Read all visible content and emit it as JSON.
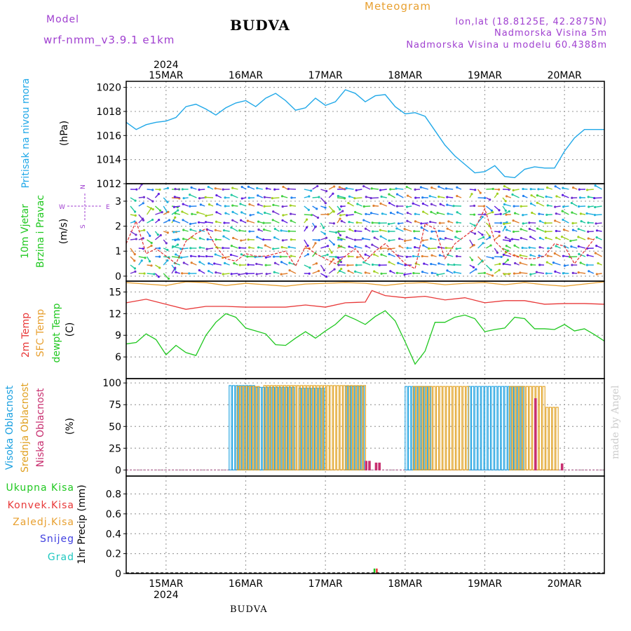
{
  "header": {
    "model_label": "Model",
    "model_value": "wrf-nmm_v3.9.1  e1km",
    "station": "BUDVA",
    "title": "Meteogram",
    "coords": "lon,lat (18.8125E, 42.2875N)",
    "altitude": "Nadmorska Visina 5m",
    "model_altitude": "Nadmorska Visina u modelu 60.4388m"
  },
  "footer": {
    "station": "BUDVA"
  },
  "watermark": "made by Angel",
  "colors": {
    "pressure": "#20a8e8",
    "temp2m": "#e83838",
    "sfc": "#e8a030",
    "dew": "#20c820",
    "high": "#1aa0e0",
    "mid": "#e0a020",
    "low": "#c83070",
    "purple": "#a040d0",
    "grid": "#a0a0a0"
  },
  "chart_data": [
    {
      "type": "line",
      "title": "",
      "ylabel": [
        "Pritisak na nivou mora",
        "(hPa)"
      ],
      "xlabel": "",
      "x_start": "2024-03-14 12:00",
      "x_end": "2024-03-20 12:00",
      "x_ticks": [
        "15MAR",
        "16MAR",
        "17MAR",
        "18MAR",
        "19MAR",
        "20MAR"
      ],
      "x_year": "2024",
      "ylim": [
        1012,
        1020.5
      ],
      "yticks": [
        "1012",
        "1014",
        "1016",
        "1018",
        "1020"
      ],
      "grid": true,
      "series": [
        {
          "name": "Pritisak na nivou mora",
          "x_hours": [
            0,
            3,
            6,
            9,
            12,
            15,
            18,
            21,
            24,
            27,
            30,
            33,
            36,
            39,
            42,
            45,
            48,
            51,
            54,
            57,
            60,
            63,
            66,
            69,
            72,
            75,
            78,
            81,
            84,
            87,
            90,
            93,
            96,
            99,
            102,
            105,
            108,
            111,
            114,
            117,
            120,
            123,
            126,
            129,
            132,
            135,
            138,
            141,
            144
          ],
          "values": [
            1017.1,
            1016.5,
            1016.9,
            1017.1,
            1017.2,
            1017.5,
            1018.4,
            1018.6,
            1018.2,
            1017.7,
            1018.3,
            1018.7,
            1018.9,
            1018.4,
            1019.1,
            1019.5,
            1018.9,
            1018.1,
            1018.3,
            1019.1,
            1018.5,
            1018.8,
            1019.8,
            1019.5,
            1018.8,
            1019.3,
            1019.4,
            1018.4,
            1017.8,
            1017.9,
            1017.6,
            1016.4,
            1015.2,
            1014.3,
            1013.6,
            1012.9,
            1013.0,
            1013.5,
            1012.6,
            1012.5,
            1013.2,
            1013.4,
            1013.3,
            1013.3,
            1014.7,
            1015.8,
            1016.5,
            1016.5,
            1016.5
          ]
        }
      ]
    },
    {
      "type": "line",
      "title": "",
      "ylabel": [
        "10m Vjetar",
        "Brzina i Pravac",
        "(m/s)"
      ],
      "compass": {
        "n": "N",
        "e": "E",
        "w": "W",
        "s": "S"
      },
      "ylim": [
        -0.2,
        3.7
      ],
      "yticks": [
        "0",
        "1",
        "2",
        "3"
      ],
      "grid": true,
      "series": [
        {
          "name": "Brzina",
          "x_hours": [
            0,
            3,
            6,
            9,
            12,
            15,
            18,
            21,
            24,
            27,
            30,
            33,
            36,
            39,
            42,
            45,
            48,
            51,
            54,
            57,
            60,
            63,
            66,
            69,
            72,
            75,
            78,
            81,
            84,
            87,
            90,
            93,
            96,
            99,
            102,
            105,
            108,
            111,
            114,
            117,
            120,
            123,
            126,
            129,
            132,
            135,
            138,
            141
          ],
          "values": [
            1.3,
            2.2,
            0.9,
            1.1,
            0.8,
            0.5,
            1.4,
            1.7,
            1.9,
            1.2,
            0.7,
            0.6,
            0.9,
            0.8,
            0.8,
            0.9,
            1.0,
            0.4,
            1.2,
            0.9,
            0.7,
            0.5,
            0.8,
            1.1,
            0.6,
            1.0,
            1.3,
            0.9,
            0.5,
            0.3,
            2.1,
            1.9,
            0.7,
            1.3,
            1.6,
            1.9,
            2.7,
            1.4,
            1.0,
            0.8,
            0.7,
            0.7,
            0.8,
            1.3,
            1.2,
            0.5,
            1.0,
            1.5
          ]
        }
      ]
    },
    {
      "type": "line",
      "title": "",
      "ylabel": [
        "2m Temp",
        "SFC Temp",
        "dewpt Temp",
        "(C)"
      ],
      "ylim": [
        3,
        16.5
      ],
      "yticks": [
        "6",
        "9",
        "12",
        "15"
      ],
      "grid": true,
      "series": [
        {
          "name": "SFC Temp",
          "x_hours": [
            0,
            6,
            12,
            18,
            24,
            30,
            36,
            42,
            48,
            54,
            60,
            66,
            72,
            78,
            84,
            90,
            96,
            102,
            108,
            114,
            120,
            126,
            132,
            138,
            144
          ],
          "values": [
            16.3,
            16.1,
            15.9,
            16.4,
            16.3,
            15.9,
            16.2,
            16.0,
            15.8,
            16.1,
            16.2,
            16.3,
            16.2,
            15.9,
            16.2,
            16.3,
            16.0,
            16.2,
            16.3,
            16.0,
            16.3,
            16.0,
            15.8,
            16.1,
            16.4
          ]
        },
        {
          "name": "2m Temp",
          "x_hours": [
            0,
            6,
            12,
            18,
            24,
            30,
            36,
            42,
            48,
            54,
            60,
            66,
            72,
            74,
            78,
            84,
            90,
            96,
            102,
            108,
            114,
            120,
            126,
            132,
            138,
            144
          ],
          "values": [
            13.5,
            14.0,
            13.3,
            12.6,
            13.0,
            13.0,
            12.9,
            12.9,
            12.9,
            13.2,
            12.9,
            13.5,
            13.6,
            15.2,
            14.5,
            14.2,
            14.4,
            13.9,
            14.2,
            13.5,
            13.8,
            13.8,
            13.3,
            13.4,
            13.4,
            13.3
          ]
        },
        {
          "name": "dewpt Temp",
          "x_hours": [
            0,
            3,
            6,
            9,
            12,
            15,
            18,
            21,
            24,
            27,
            30,
            33,
            36,
            39,
            42,
            45,
            48,
            51,
            54,
            57,
            60,
            63,
            66,
            69,
            72,
            75,
            78,
            81,
            84,
            87,
            90,
            93,
            96,
            99,
            102,
            105,
            108,
            111,
            114,
            117,
            120,
            123,
            126,
            129,
            132,
            135,
            138,
            141,
            144
          ],
          "values": [
            7.8,
            8.0,
            9.2,
            8.4,
            6.3,
            7.6,
            6.6,
            6.2,
            9.0,
            10.8,
            12.0,
            11.5,
            10.0,
            9.6,
            9.2,
            7.7,
            7.6,
            8.6,
            9.5,
            8.6,
            9.6,
            10.5,
            11.8,
            11.2,
            10.5,
            11.6,
            12.4,
            11.0,
            8.1,
            5.0,
            6.8,
            10.8,
            10.8,
            11.5,
            11.8,
            11.3,
            9.5,
            9.8,
            10.0,
            11.5,
            11.3,
            9.9,
            9.9,
            9.8,
            10.5,
            9.6,
            9.9,
            9.1,
            8.2
          ]
        }
      ]
    },
    {
      "type": "bar",
      "title": "",
      "ylabel": [
        "Visoka Oblacnost",
        "Srednja Oblacnost",
        "Niska Oblacnost",
        "(%)"
      ],
      "ylim": [
        -7,
        105
      ],
      "yticks": [
        "0",
        "25",
        "50",
        "75",
        "100"
      ],
      "grid": true,
      "series": [
        {
          "name": "Visoka Oblacnost",
          "segments": [
            {
              "from_hour": 31,
              "to_hour": 39,
              "value": 97
            },
            {
              "from_hour": 39,
              "to_hour": 51,
              "value": 95
            },
            {
              "from_hour": 52,
              "to_hour": 60,
              "value": 94
            },
            {
              "from_hour": 66,
              "to_hour": 72,
              "value": 96
            },
            {
              "from_hour": 84,
              "to_hour": 92,
              "value": 96
            },
            {
              "from_hour": 103,
              "to_hour": 120,
              "value": 96
            }
          ]
        },
        {
          "name": "Srednja Oblacnost",
          "segments": [
            {
              "from_hour": 33,
              "to_hour": 40,
              "value": 96
            },
            {
              "from_hour": 41,
              "to_hour": 72,
              "value": 97
            },
            {
              "from_hour": 86,
              "to_hour": 103,
              "value": 96
            },
            {
              "from_hour": 115,
              "to_hour": 126,
              "value": 96
            },
            {
              "from_hour": 126,
              "to_hour": 130,
              "value": 72
            }
          ]
        },
        {
          "name": "Niska Oblacnost",
          "segments": [
            {
              "from_hour": 72,
              "to_hour": 74,
              "value": 10
            },
            {
              "from_hour": 75,
              "to_hour": 77,
              "value": 8
            },
            {
              "from_hour": 123,
              "to_hour": 124,
              "value": 82
            },
            {
              "from_hour": 131,
              "to_hour": 132,
              "value": 7
            }
          ]
        }
      ]
    },
    {
      "type": "bar",
      "title": "",
      "ylabel": [
        "1hr Precip (mm)"
      ],
      "ylim": [
        0,
        0.98
      ],
      "yticks": [
        "0",
        "0.2",
        "0.4",
        "0.6",
        "0.8"
      ],
      "grid": true,
      "legend": [
        "Ukupna Kisa",
        "Konvek.Kisa",
        "Zaledj.Kisa",
        "Snijeg",
        "Grad"
      ],
      "series": [
        {
          "name": "Ukupna Kisa",
          "x_hours": [
            74.5
          ],
          "values": [
            0.05
          ]
        },
        {
          "name": "Konvek.Kisa",
          "x_hours": [
            75.2
          ],
          "values": [
            0.05
          ]
        }
      ]
    }
  ]
}
